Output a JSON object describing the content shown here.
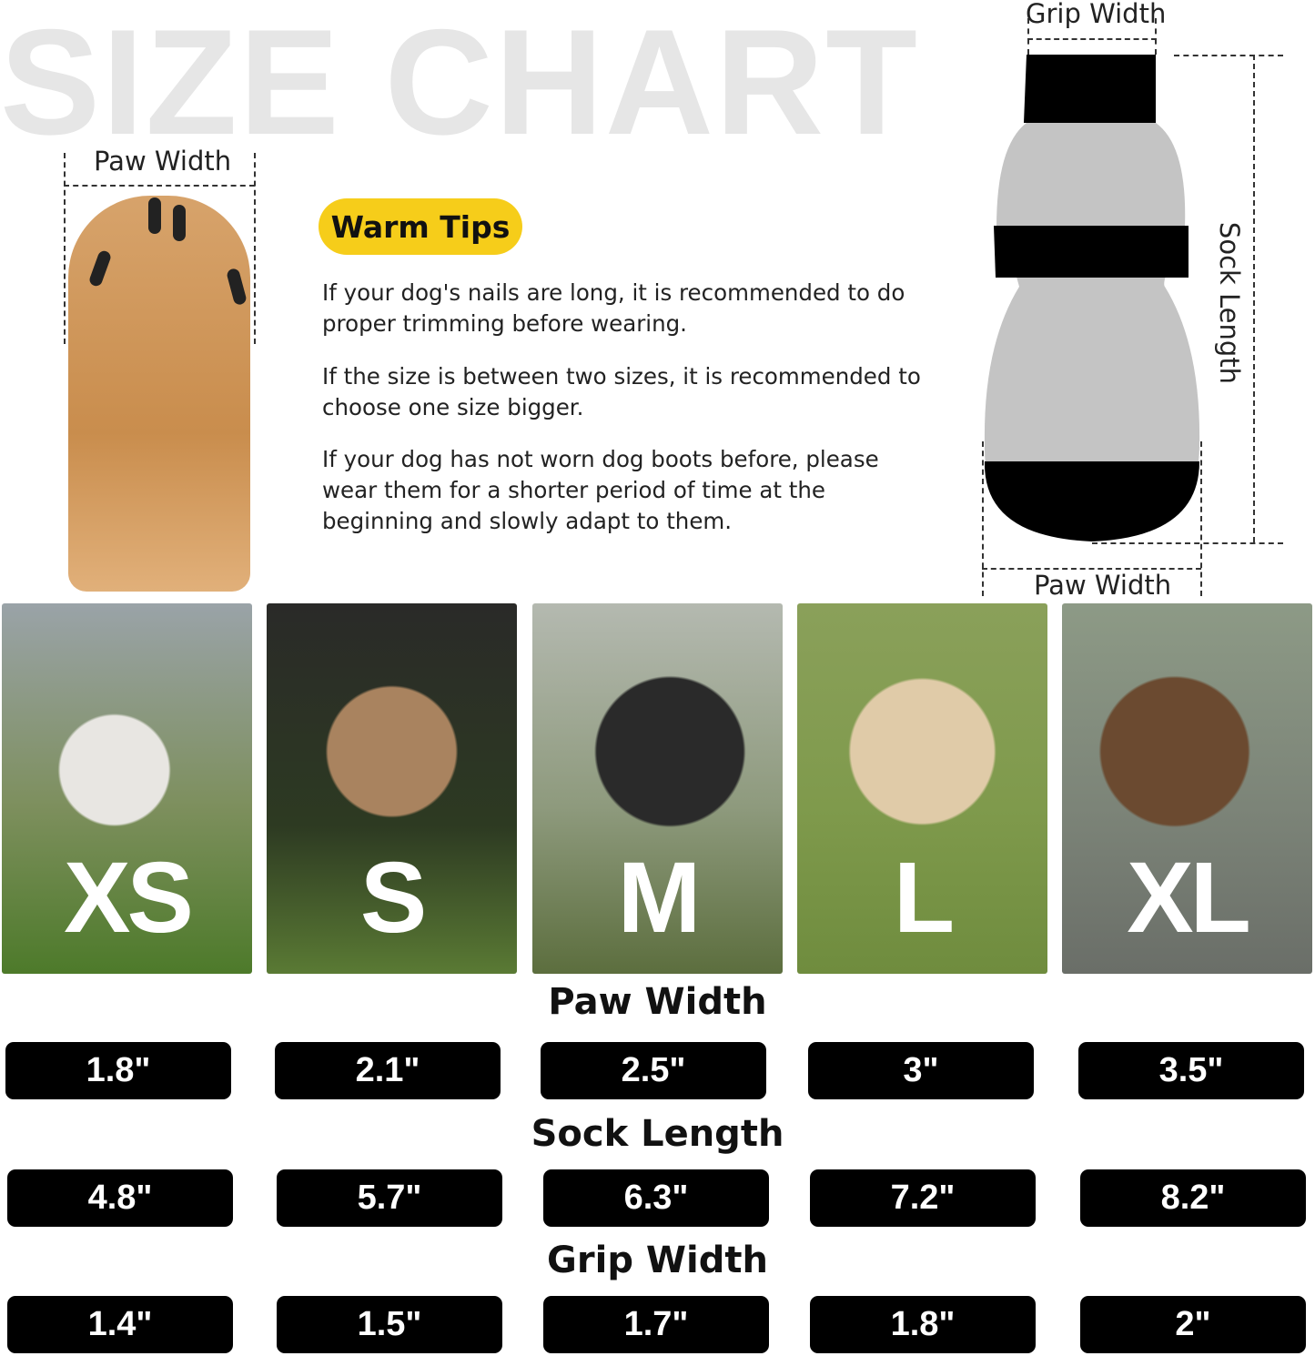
{
  "title": "SIZE CHART",
  "paw_label": "Paw Width",
  "warm_tips": {
    "badge": "Warm Tips",
    "tips": [
      "If your dog's nails are long, it is recommended to do proper trimming before wearing.",
      "If the size is between two sizes, it is recommended to choose one size bigger.",
      "If your dog has not worn dog boots before, please wear them for a shorter period of time at the beginning and slowly adapt to them."
    ]
  },
  "sock_diagram": {
    "grip_width": "Grip Width",
    "sock_length": "Sock Length",
    "paw_width": "Paw Width"
  },
  "sizes": [
    "XS",
    "S",
    "M",
    "L",
    "XL"
  ],
  "rows": [
    {
      "label": "Paw Width",
      "values": [
        "1.8\"",
        "2.1\"",
        "2.5\"",
        "3\"",
        "3.5\""
      ]
    },
    {
      "label": "Sock Length",
      "values": [
        "4.8\"",
        "5.7\"",
        "6.3\"",
        "7.2\"",
        "8.2\""
      ]
    },
    {
      "label": "Grip Width",
      "values": [
        "1.4\"",
        "1.5\"",
        "1.7\"",
        "1.8\"",
        "2\""
      ]
    }
  ],
  "colors": {
    "accent": "#f6cd1a",
    "pill": "#000000"
  }
}
